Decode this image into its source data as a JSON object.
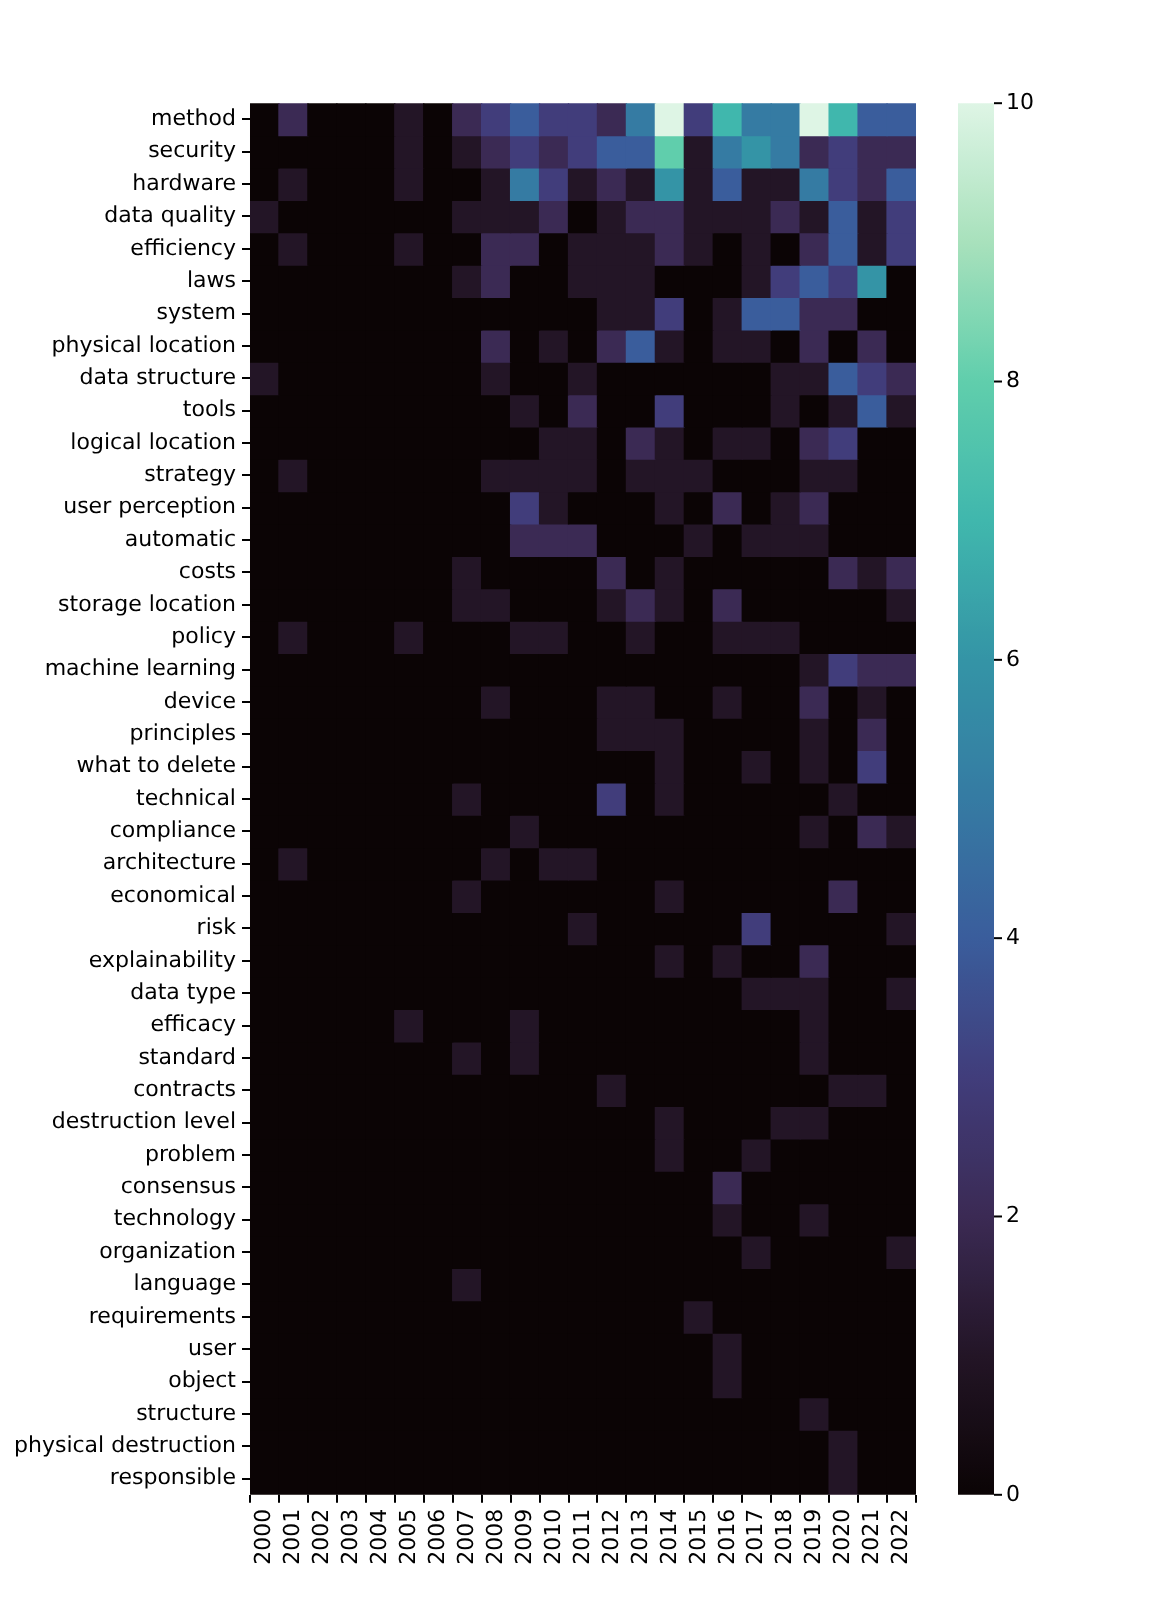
{
  "chart_data": {
    "type": "heatmap",
    "categories": [
      "2000",
      "2001",
      "2002",
      "2003",
      "2004",
      "2005",
      "2006",
      "2007",
      "2008",
      "2009",
      "2010",
      "2011",
      "2012",
      "2013",
      "2014",
      "2015",
      "2016",
      "2017",
      "2018",
      "2019",
      "2020",
      "2021",
      "2022"
    ],
    "y_categories": [
      "method",
      "security",
      "hardware",
      "data quality",
      "efficiency",
      "laws",
      "system",
      "physical location",
      "data structure",
      "tools",
      "logical location",
      "strategy",
      "user perception",
      "automatic",
      "costs",
      "storage location",
      "policy",
      "machine learning",
      "device",
      "principles",
      "what to delete",
      "technical",
      "compliance",
      "architecture",
      "economical",
      "risk",
      "explainability",
      "data type",
      "efficacy",
      "standard",
      "contracts",
      "destruction level",
      "problem",
      "consensus",
      "technology",
      "organization",
      "language",
      "requirements",
      "user",
      "object",
      "structure",
      "physical destruction",
      "responsible"
    ],
    "cells": [
      [
        0,
        2,
        0,
        0,
        0,
        1,
        0,
        2,
        3,
        4,
        3,
        3,
        2,
        5,
        10,
        3,
        7,
        5,
        5,
        10,
        7,
        4,
        4
      ],
      [
        0,
        0,
        0,
        0,
        0,
        1,
        0,
        1,
        2,
        3,
        2,
        3,
        4,
        4,
        8,
        1,
        5,
        6,
        5,
        2,
        3,
        2,
        2
      ],
      [
        0,
        1,
        0,
        0,
        0,
        1,
        0,
        0,
        1,
        5,
        3,
        1,
        2,
        1,
        6,
        1,
        4,
        1,
        1,
        5,
        3,
        2,
        4
      ],
      [
        1,
        0,
        0,
        0,
        0,
        0,
        0,
        1,
        1,
        1,
        2,
        0,
        1,
        2,
        2,
        1,
        1,
        1,
        2,
        1,
        4,
        1,
        3
      ],
      [
        0,
        1,
        0,
        0,
        0,
        1,
        0,
        0,
        2,
        2,
        0,
        1,
        1,
        1,
        2,
        1,
        0,
        1,
        0,
        2,
        4,
        1,
        3
      ],
      [
        0,
        0,
        0,
        0,
        0,
        0,
        0,
        1,
        2,
        0,
        0,
        1,
        1,
        1,
        0,
        0,
        0,
        1,
        3,
        4,
        3,
        6,
        0
      ],
      [
        0,
        0,
        0,
        0,
        0,
        0,
        0,
        0,
        0,
        0,
        0,
        0,
        1,
        1,
        3,
        0,
        1,
        4,
        4,
        2,
        2,
        0,
        0
      ],
      [
        0,
        0,
        0,
        0,
        0,
        0,
        0,
        0,
        2,
        0,
        1,
        0,
        2,
        4,
        1,
        0,
        1,
        1,
        0,
        2,
        0,
        2,
        0
      ],
      [
        1,
        0,
        0,
        0,
        0,
        0,
        0,
        0,
        1,
        0,
        0,
        1,
        0,
        0,
        0,
        0,
        0,
        0,
        1,
        1,
        4,
        3,
        2
      ],
      [
        0,
        0,
        0,
        0,
        0,
        0,
        0,
        0,
        0,
        1,
        0,
        2,
        0,
        0,
        3,
        0,
        0,
        0,
        1,
        0,
        1,
        4,
        1
      ],
      [
        0,
        0,
        0,
        0,
        0,
        0,
        0,
        0,
        0,
        0,
        1,
        1,
        0,
        2,
        1,
        0,
        1,
        1,
        0,
        2,
        3,
        0,
        0
      ],
      [
        0,
        1,
        0,
        0,
        0,
        0,
        0,
        0,
        1,
        1,
        1,
        1,
        0,
        1,
        1,
        1,
        0,
        0,
        0,
        1,
        1,
        0,
        0
      ],
      [
        0,
        0,
        0,
        0,
        0,
        0,
        0,
        0,
        0,
        3,
        1,
        0,
        0,
        0,
        1,
        0,
        2,
        0,
        1,
        2,
        0,
        0,
        0
      ],
      [
        0,
        0,
        0,
        0,
        0,
        0,
        0,
        0,
        0,
        2,
        2,
        2,
        0,
        0,
        0,
        1,
        0,
        1,
        1,
        1,
        0,
        0,
        0
      ],
      [
        0,
        0,
        0,
        0,
        0,
        0,
        0,
        1,
        0,
        0,
        0,
        0,
        2,
        0,
        1,
        0,
        0,
        0,
        0,
        0,
        2,
        1,
        2
      ],
      [
        0,
        0,
        0,
        0,
        0,
        0,
        0,
        1,
        1,
        0,
        0,
        0,
        1,
        2,
        1,
        0,
        2,
        0,
        0,
        0,
        0,
        0,
        1
      ],
      [
        0,
        1,
        0,
        0,
        0,
        1,
        0,
        0,
        0,
        1,
        1,
        0,
        0,
        1,
        0,
        0,
        1,
        1,
        1,
        0,
        0,
        0,
        0
      ],
      [
        0,
        0,
        0,
        0,
        0,
        0,
        0,
        0,
        0,
        0,
        0,
        0,
        0,
        0,
        0,
        0,
        0,
        0,
        0,
        1,
        3,
        2,
        2
      ],
      [
        0,
        0,
        0,
        0,
        0,
        0,
        0,
        0,
        1,
        0,
        0,
        0,
        1,
        1,
        0,
        0,
        1,
        0,
        0,
        2,
        0,
        1,
        0
      ],
      [
        0,
        0,
        0,
        0,
        0,
        0,
        0,
        0,
        0,
        0,
        0,
        0,
        1,
        1,
        1,
        0,
        0,
        0,
        0,
        1,
        0,
        2,
        0
      ],
      [
        0,
        0,
        0,
        0,
        0,
        0,
        0,
        0,
        0,
        0,
        0,
        0,
        0,
        0,
        1,
        0,
        0,
        1,
        0,
        1,
        0,
        3,
        0
      ],
      [
        0,
        0,
        0,
        0,
        0,
        0,
        0,
        1,
        0,
        0,
        0,
        0,
        3,
        0,
        1,
        0,
        0,
        0,
        0,
        0,
        1,
        0,
        0
      ],
      [
        0,
        0,
        0,
        0,
        0,
        0,
        0,
        0,
        0,
        1,
        0,
        0,
        0,
        0,
        0,
        0,
        0,
        0,
        0,
        1,
        0,
        2,
        1
      ],
      [
        0,
        1,
        0,
        0,
        0,
        0,
        0,
        0,
        1,
        0,
        1,
        1,
        0,
        0,
        0,
        0,
        0,
        0,
        0,
        0,
        0,
        0,
        0
      ],
      [
        0,
        0,
        0,
        0,
        0,
        0,
        0,
        1,
        0,
        0,
        0,
        0,
        0,
        0,
        1,
        0,
        0,
        0,
        0,
        0,
        2,
        0,
        0
      ],
      [
        0,
        0,
        0,
        0,
        0,
        0,
        0,
        0,
        0,
        0,
        0,
        1,
        0,
        0,
        0,
        0,
        0,
        3,
        0,
        0,
        0,
        0,
        1
      ],
      [
        0,
        0,
        0,
        0,
        0,
        0,
        0,
        0,
        0,
        0,
        0,
        0,
        0,
        0,
        1,
        0,
        1,
        0,
        0,
        2,
        0,
        0,
        0
      ],
      [
        0,
        0,
        0,
        0,
        0,
        0,
        0,
        0,
        0,
        0,
        0,
        0,
        0,
        0,
        0,
        0,
        0,
        1,
        1,
        1,
        0,
        0,
        1
      ],
      [
        0,
        0,
        0,
        0,
        0,
        1,
        0,
        0,
        0,
        1,
        0,
        0,
        0,
        0,
        0,
        0,
        0,
        0,
        0,
        1,
        0,
        0,
        0
      ],
      [
        0,
        0,
        0,
        0,
        0,
        0,
        0,
        1,
        0,
        1,
        0,
        0,
        0,
        0,
        0,
        0,
        0,
        0,
        0,
        1,
        0,
        0,
        0
      ],
      [
        0,
        0,
        0,
        0,
        0,
        0,
        0,
        0,
        0,
        0,
        0,
        0,
        1,
        0,
        0,
        0,
        0,
        0,
        0,
        0,
        1,
        1,
        0
      ],
      [
        0,
        0,
        0,
        0,
        0,
        0,
        0,
        0,
        0,
        0,
        0,
        0,
        0,
        0,
        1,
        0,
        0,
        0,
        1,
        1,
        0,
        0,
        0
      ],
      [
        0,
        0,
        0,
        0,
        0,
        0,
        0,
        0,
        0,
        0,
        0,
        0,
        0,
        0,
        1,
        0,
        0,
        1,
        0,
        0,
        0,
        0,
        0
      ],
      [
        0,
        0,
        0,
        0,
        0,
        0,
        0,
        0,
        0,
        0,
        0,
        0,
        0,
        0,
        0,
        0,
        2,
        0,
        0,
        0,
        0,
        0,
        0
      ],
      [
        0,
        0,
        0,
        0,
        0,
        0,
        0,
        0,
        0,
        0,
        0,
        0,
        0,
        0,
        0,
        0,
        1,
        0,
        0,
        1,
        0,
        0,
        0
      ],
      [
        0,
        0,
        0,
        0,
        0,
        0,
        0,
        0,
        0,
        0,
        0,
        0,
        0,
        0,
        0,
        0,
        0,
        1,
        0,
        0,
        0,
        0,
        1
      ],
      [
        0,
        0,
        0,
        0,
        0,
        0,
        0,
        1,
        0,
        0,
        0,
        0,
        0,
        0,
        0,
        0,
        0,
        0,
        0,
        0,
        0,
        0,
        0
      ],
      [
        0,
        0,
        0,
        0,
        0,
        0,
        0,
        0,
        0,
        0,
        0,
        0,
        0,
        0,
        0,
        1,
        0,
        0,
        0,
        0,
        0,
        0,
        0
      ],
      [
        0,
        0,
        0,
        0,
        0,
        0,
        0,
        0,
        0,
        0,
        0,
        0,
        0,
        0,
        0,
        0,
        1,
        0,
        0,
        0,
        0,
        0,
        0
      ],
      [
        0,
        0,
        0,
        0,
        0,
        0,
        0,
        0,
        0,
        0,
        0,
        0,
        0,
        0,
        0,
        0,
        1,
        0,
        0,
        0,
        0,
        0,
        0
      ],
      [
        0,
        0,
        0,
        0,
        0,
        0,
        0,
        0,
        0,
        0,
        0,
        0,
        0,
        0,
        0,
        0,
        0,
        0,
        0,
        1,
        0,
        0,
        0
      ],
      [
        0,
        0,
        0,
        0,
        0,
        0,
        0,
        0,
        0,
        0,
        0,
        0,
        0,
        0,
        0,
        0,
        0,
        0,
        0,
        0,
        1,
        0,
        0
      ],
      [
        0,
        0,
        0,
        0,
        0,
        0,
        0,
        0,
        0,
        0,
        0,
        0,
        0,
        0,
        0,
        0,
        0,
        0,
        0,
        0,
        1,
        0,
        0
      ]
    ],
    "clim": [
      0,
      10
    ],
    "cticks": [
      0,
      2,
      4,
      6,
      8,
      10
    ]
  }
}
